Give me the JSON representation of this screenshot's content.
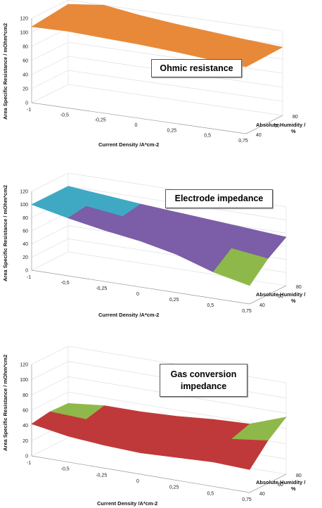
{
  "chart_data": [
    {
      "type": "surface",
      "title": "Ohmic resistance",
      "ylabel": "Area Specific Resistance / mOhm*cm2",
      "xlabel": "Current Density /A*cm-2",
      "zlabel_line1": "Absolute Humidity /",
      "zlabel_line2": "%",
      "x_ticks": [
        "-1",
        "-0,5",
        "-0,25",
        "0",
        "0,25",
        "0,5",
        "0,75"
      ],
      "y_ticks": [
        "0",
        "20",
        "40",
        "60",
        "80",
        "100",
        "120"
      ],
      "z_ticks": [
        "40",
        "60",
        "80"
      ],
      "ylim": [
        0,
        120
      ],
      "x": [
        -1,
        -0.5,
        -0.25,
        0,
        0.25,
        0.5,
        0.75
      ],
      "humidity": [
        40,
        60,
        80
      ],
      "series": [
        {
          "color": "#e8893a",
          "values": [
            [
              108,
              109,
              107,
              105,
              102,
              98,
              95
            ],
            [
              111,
              114,
              109,
              106,
              103,
              99,
              96
            ],
            [
              114,
              120,
              113,
              108,
              104,
              100,
              97
            ]
          ]
        }
      ]
    },
    {
      "type": "surface",
      "title": "Electrode impedance",
      "ylabel": "Area Specific Resistance / mOhm*cm2",
      "xlabel": "Current Density /A*cm-2",
      "zlabel_line1": "Absolute Humidity /",
      "zlabel_line2": "%",
      "x_ticks": [
        "-1",
        "-0,5",
        "-0,25",
        "0",
        "0,25",
        "0,5",
        "0,75"
      ],
      "y_ticks": [
        "0",
        "20",
        "40",
        "60",
        "80",
        "100",
        "120"
      ],
      "z_ticks": [
        "40",
        "60",
        "80"
      ],
      "ylim": [
        0,
        120
      ],
      "x": [
        -1,
        -0.5,
        -0.25,
        0,
        0.25,
        0.5,
        0.75
      ],
      "humidity": [
        40,
        60,
        80
      ],
      "series": [
        {
          "color": "#7b5ea7",
          "values": [
            [
              100,
              88,
              78,
              70,
              58,
              40,
              28
            ],
            [
              100,
              92,
              85,
              78,
              70,
              62,
              55
            ],
            [
              100,
              95,
              90,
              86,
              82,
              78,
              74
            ]
          ]
        }
      ],
      "bands": [
        "#f08a3a",
        "#3fa9c4",
        "#7b5ea7",
        "#8fb84a"
      ],
      "band_thresholds": [
        100,
        90,
        60
      ]
    },
    {
      "type": "surface",
      "title_line1": "Gas conversion",
      "title_line2": "impedance",
      "ylabel": "Area Specific Resistance / mOhm*cm2",
      "xlabel": "Current Density /A*cm-2",
      "zlabel_line1": "Absolute Humidity /",
      "zlabel_line2": "%",
      "x_ticks": [
        "-1",
        "-0,5",
        "-0,25",
        "0",
        "0,25",
        "0,5",
        "0,75"
      ],
      "y_ticks": [
        "0",
        "20",
        "40",
        "60",
        "80",
        "100",
        "120"
      ],
      "z_ticks": [
        "40",
        "60",
        "80"
      ],
      "ylim": [
        0,
        120
      ],
      "x": [
        -1,
        -0.5,
        -0.25,
        0,
        0.25,
        0.5,
        0.75
      ],
      "humidity": [
        40,
        60,
        80
      ],
      "series": [
        {
          "color": "#c0393a",
          "values": [
            [
              42,
              34,
              30,
              28,
              30,
              32,
              30
            ],
            [
              46,
              44,
              42,
              42,
              46,
              50,
              56
            ],
            [
              45,
              50,
              50,
              52,
              56,
              58,
              75
            ]
          ]
        }
      ],
      "bands": [
        "#c0393a",
        "#c0393a",
        "#8fb84a",
        "#6a4a9a"
      ],
      "band_thresholds": [
        100,
        60,
        52
      ]
    }
  ]
}
